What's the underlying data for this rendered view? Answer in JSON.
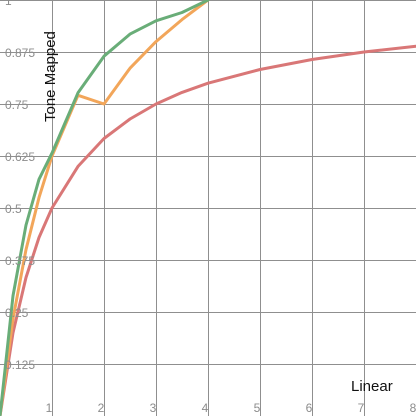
{
  "chart_data": {
    "type": "line",
    "xlabel": "Linear",
    "ylabel": "Tone Mapped",
    "xlim": [
      0,
      8
    ],
    "ylim": [
      0,
      1
    ],
    "grid": true,
    "x_ticks": [
      1,
      2,
      3,
      4,
      5,
      6,
      7,
      8
    ],
    "y_ticks": [
      0.125,
      0.25,
      0.375,
      0.5,
      0.625,
      0.75,
      0.875,
      1
    ],
    "x_tick_labels": [
      "1",
      "2",
      "3",
      "4",
      "5",
      "6",
      "7",
      "8"
    ],
    "y_tick_labels": [
      "0.125",
      "0.25",
      "0.375",
      "0.5",
      "0.625",
      "0.75",
      "0.875",
      "1"
    ],
    "series": [
      {
        "color": "#d97777",
        "points": [
          [
            0,
            0
          ],
          [
            0.25,
            0.2
          ],
          [
            0.5,
            0.333
          ],
          [
            0.75,
            0.429
          ],
          [
            1,
            0.5
          ],
          [
            1.5,
            0.6
          ],
          [
            2,
            0.667
          ],
          [
            2.5,
            0.714
          ],
          [
            3,
            0.75
          ],
          [
            3.5,
            0.778
          ],
          [
            4,
            0.8
          ],
          [
            5,
            0.833
          ],
          [
            6,
            0.857
          ],
          [
            7,
            0.875
          ],
          [
            8,
            0.889
          ]
        ]
      },
      {
        "color": "#f2a65a",
        "points": [
          [
            0,
            0
          ],
          [
            0.25,
            0.234
          ],
          [
            0.5,
            0.4
          ],
          [
            0.75,
            0.525
          ],
          [
            1,
            0.625
          ],
          [
            1.5,
            0.771
          ],
          [
            2,
            0.75
          ],
          [
            2.5,
            0.836
          ],
          [
            3,
            0.9
          ],
          [
            3.5,
            0.953
          ],
          [
            4,
            1
          ]
        ]
      },
      {
        "color": "#69ad78",
        "points": [
          [
            0,
            0
          ],
          [
            0.25,
            0.289
          ],
          [
            0.5,
            0.459
          ],
          [
            0.75,
            0.569
          ],
          [
            1,
            0.632
          ],
          [
            1.5,
            0.777
          ],
          [
            2,
            0.865
          ],
          [
            2.5,
            0.918
          ],
          [
            3,
            0.95
          ],
          [
            3.5,
            0.97
          ],
          [
            4,
            1
          ]
        ]
      }
    ]
  }
}
